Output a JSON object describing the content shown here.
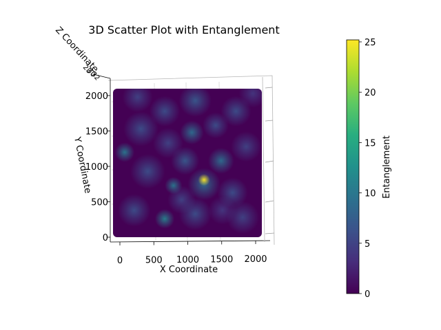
{
  "chart_data": {
    "type": "scatter",
    "title": "3D Scatter Plot with Entanglement",
    "xlabel": "X Coordinate",
    "ylabel": "Y Coordinate",
    "zlabel": "Z Coordinate",
    "x_ticks": [
      "0",
      "500",
      "1000",
      "1500",
      "2000"
    ],
    "y_ticks": [
      "0",
      "500",
      "1000",
      "1500",
      "2000"
    ],
    "xlim": [
      -100,
      2100
    ],
    "ylim": [
      -100,
      2100
    ],
    "colorbar": {
      "label": "Entanglement",
      "colormap": "viridis",
      "range": [
        0,
        25.2
      ],
      "ticks": [
        "0",
        "5",
        "10",
        "15",
        "20",
        "25"
      ]
    },
    "grid_extent": {
      "x": [
        0,
        2000
      ],
      "y": [
        0,
        2000
      ]
    },
    "background_value": 0,
    "blobs": [
      {
        "x": 1230,
        "y": 780,
        "value": 25.2,
        "spread": 55
      },
      {
        "x": 1230,
        "y": 720,
        "value": 9,
        "spread": 150
      },
      {
        "x": 780,
        "y": 700,
        "value": 10,
        "spread": 80
      },
      {
        "x": 650,
        "y": 230,
        "value": 11,
        "spread": 90
      },
      {
        "x": 60,
        "y": 1170,
        "value": 10,
        "spread": 90
      },
      {
        "x": 1050,
        "y": 1450,
        "value": 9,
        "spread": 110
      },
      {
        "x": 1480,
        "y": 1050,
        "value": 9,
        "spread": 120
      },
      {
        "x": 950,
        "y": 1050,
        "value": 7,
        "spread": 130
      },
      {
        "x": 1100,
        "y": 1900,
        "value": 7,
        "spread": 150
      },
      {
        "x": 650,
        "y": 1750,
        "value": 6,
        "spread": 140
      },
      {
        "x": 300,
        "y": 1500,
        "value": 6,
        "spread": 160
      },
      {
        "x": 1700,
        "y": 1750,
        "value": 6,
        "spread": 140
      },
      {
        "x": 1400,
        "y": 1550,
        "value": 6,
        "spread": 120
      },
      {
        "x": 400,
        "y": 900,
        "value": 6,
        "spread": 160
      },
      {
        "x": 1650,
        "y": 600,
        "value": 6,
        "spread": 140
      },
      {
        "x": 200,
        "y": 350,
        "value": 6,
        "spread": 150
      },
      {
        "x": 1100,
        "y": 300,
        "value": 6,
        "spread": 150
      },
      {
        "x": 1800,
        "y": 250,
        "value": 5,
        "spread": 150
      },
      {
        "x": 1850,
        "y": 1250,
        "value": 5,
        "spread": 140
      },
      {
        "x": 700,
        "y": 1300,
        "value": 5,
        "spread": 140
      },
      {
        "x": 1950,
        "y": 2000,
        "value": 4,
        "spread": 130
      },
      {
        "x": 250,
        "y": 1950,
        "value": 5,
        "spread": 140
      },
      {
        "x": 900,
        "y": 500,
        "value": 5,
        "spread": 130
      },
      {
        "x": 1500,
        "y": 350,
        "value": 4,
        "spread": 130
      }
    ]
  }
}
